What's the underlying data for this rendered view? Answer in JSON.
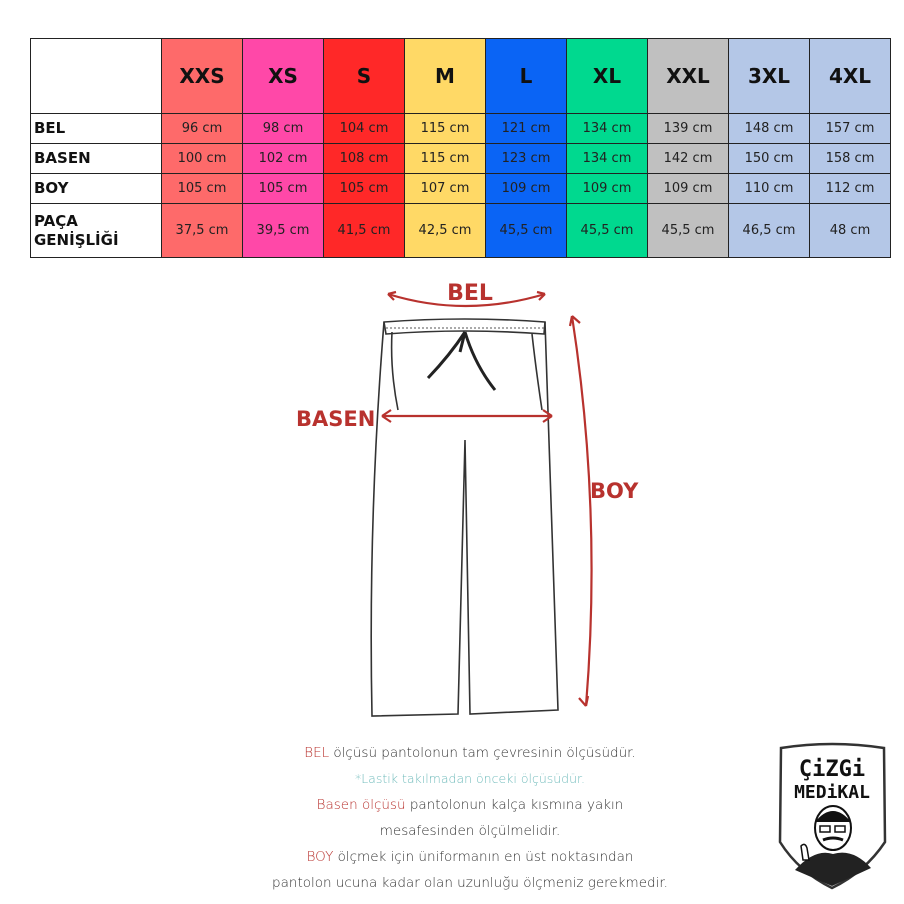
{
  "table": {
    "sizes": [
      {
        "label": "XXS",
        "color": "#fe6a6a",
        "bel": "96 cm",
        "basen": "100 cm",
        "boy": "105 cm",
        "paca": "37,5 cm"
      },
      {
        "label": "XS",
        "color": "#ff48a8",
        "bel": "98 cm",
        "basen": "102 cm",
        "boy": "105 cm",
        "paca": "39,5 cm"
      },
      {
        "label": "S",
        "color": "#ff2828",
        "bel": "104 cm",
        "basen": "108 cm",
        "boy": "105 cm",
        "paca": "41,5 cm"
      },
      {
        "label": "M",
        "color": "#ffd966",
        "bel": "115 cm",
        "basen": "115 cm",
        "boy": "107 cm",
        "paca": "42,5 cm"
      },
      {
        "label": "L",
        "color": "#0a64f5",
        "bel": "121 cm",
        "basen": "123 cm",
        "boy": "109 cm",
        "paca": "45,5 cm"
      },
      {
        "label": "XL",
        "color": "#00d98f",
        "bel": "134 cm",
        "basen": "134 cm",
        "boy": "109 cm",
        "paca": "45,5 cm"
      },
      {
        "label": "XXL",
        "color": "#c0c0c0",
        "bel": "139 cm",
        "basen": "142 cm",
        "boy": "109 cm",
        "paca": "45,5 cm"
      },
      {
        "label": "3XL",
        "color": "#b4c7e7",
        "bel": "148 cm",
        "basen": "150 cm",
        "boy": "110 cm",
        "paca": "46,5 cm"
      },
      {
        "label": "4XL",
        "color": "#b4c7e7",
        "bel": "157 cm",
        "basen": "158 cm",
        "boy": "112 cm",
        "paca": "48 cm"
      }
    ],
    "rows": {
      "bel": "BEL",
      "basen": "BASEN",
      "boy": "BOY",
      "paca1": "PAÇA",
      "paca2": "GENİŞLİĞİ"
    }
  },
  "diagram": {
    "bel": "BEL",
    "basen": "BASEN",
    "boy": "BOY",
    "accent": "#b8322e"
  },
  "notes": {
    "l1_red": "BEL",
    "l1": " ölçüsü pantolonun tam çevresinin ölçüsüdür.",
    "l2": "*Lastik takılmadan önceki ölçüsüdür.",
    "l3_red": "Basen ölçüsü",
    "l3": " pantolonun kalça kısmına yakın",
    "l4": "mesafesinden ölçülmelidir.",
    "l5_red": "BOY",
    "l5": " ölçmek için üniformanın en üst noktasından",
    "l6": "pantolon ucuna kadar olan uzunluğu ölçmeniz gerekmedir."
  },
  "logo": {
    "line1": "ÇiZGi",
    "line2": "MEDiKAL"
  }
}
